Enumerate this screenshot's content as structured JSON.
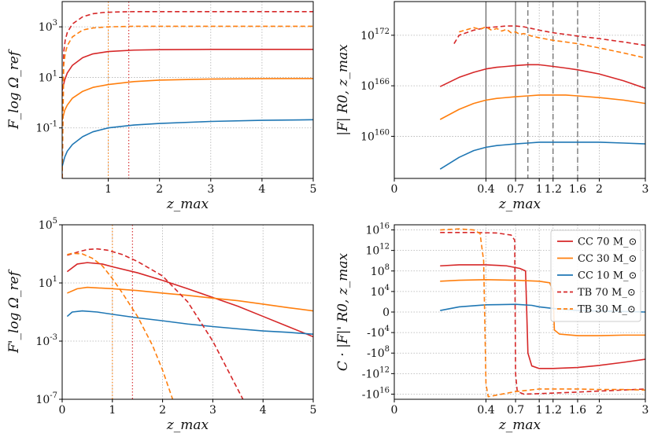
{
  "colors": {
    "red": "#d62728",
    "orange": "#ff7f0e",
    "blue": "#1f77b4",
    "grid": "#b0b0b0",
    "vline_gray": "#555555"
  },
  "chart_data": [
    {
      "id": "top-left",
      "type": "line",
      "xlabel": "z_max",
      "ylabel": "F_log Ω_ref",
      "xscale": "linear",
      "yscale": "log",
      "xlim": [
        0.1,
        5
      ],
      "ylim": [
        0.001,
        10000
      ],
      "xticks": [
        1,
        2,
        3,
        4,
        5
      ],
      "xtick_labels": [
        "1",
        "2",
        "3",
        "4",
        "5"
      ],
      "yticks": [
        0.1,
        10,
        1000
      ],
      "ytick_labels": [
        "10^-1",
        "10^1",
        "10^3"
      ],
      "vlines": [
        {
          "x": 1.0,
          "color": "orange",
          "style": "dotted"
        },
        {
          "x": 1.4,
          "color": "red",
          "style": "dotted"
        }
      ],
      "series": [
        {
          "name": "CC 70",
          "color": "red",
          "dash": "solid",
          "x": [
            0.1,
            0.15,
            0.2,
            0.3,
            0.5,
            0.7,
            1,
            1.5,
            2,
            3,
            4,
            5
          ],
          "y": [
            3,
            8,
            15,
            30,
            60,
            85,
            105,
            120,
            125,
            128,
            128,
            128
          ]
        },
        {
          "name": "CC 30",
          "color": "orange",
          "dash": "solid",
          "x": [
            0.1,
            0.15,
            0.2,
            0.3,
            0.5,
            0.7,
            1,
            1.5,
            2,
            3,
            4,
            5
          ],
          "y": [
            0.2,
            0.5,
            0.8,
            1.5,
            2.8,
            4,
            5.2,
            6.8,
            7.8,
            8.6,
            8.9,
            9
          ]
        },
        {
          "name": "CC 10",
          "color": "blue",
          "dash": "solid",
          "x": [
            0.1,
            0.15,
            0.2,
            0.3,
            0.5,
            0.7,
            1,
            1.5,
            2,
            3,
            4,
            5
          ],
          "y": [
            0.003,
            0.007,
            0.012,
            0.022,
            0.045,
            0.07,
            0.1,
            0.13,
            0.15,
            0.18,
            0.2,
            0.21
          ]
        },
        {
          "name": "TB 70",
          "color": "red",
          "dash": "dashed",
          "x": [
            0.1,
            0.13,
            0.16,
            0.2,
            0.3,
            0.5,
            0.7,
            0.9,
            1.2,
            1.5,
            2,
            3,
            4,
            5
          ],
          "y": [
            0.001,
            100,
            300,
            600,
            1300,
            2500,
            3300,
            3700,
            3900,
            4000,
            4000,
            4000,
            4000,
            4000
          ]
        },
        {
          "name": "TB 30",
          "color": "orange",
          "dash": "dashed",
          "x": [
            0.1,
            0.13,
            0.16,
            0.2,
            0.3,
            0.5,
            0.7,
            1,
            1.5,
            2,
            3,
            4,
            5
          ],
          "y": [
            0.001,
            30,
            90,
            180,
            400,
            750,
            900,
            1000,
            1050,
            1050,
            1050,
            1050,
            1050
          ]
        }
      ]
    },
    {
      "id": "top-right",
      "type": "line",
      "xlabel": "z_max",
      "ylabel": "|F| R0, z_max",
      "xscale": "sqrt",
      "yscale": "log",
      "xlim": [
        0,
        3
      ],
      "ylim": [
        1e+155,
        1e+176
      ],
      "xticks": [
        0,
        0.4,
        0.7,
        1,
        1.2,
        1.6,
        2,
        3
      ],
      "xtick_labels": [
        "0",
        "0.4",
        "0.7",
        "1",
        "1.2",
        "1.6",
        "2",
        "3"
      ],
      "yticks": [
        1e+160,
        1e+166,
        1e+172
      ],
      "ytick_labels": [
        "10^160",
        "10^166",
        "10^172"
      ],
      "vlines": [
        {
          "x": 0.4,
          "color": "vline_gray",
          "style": "solid"
        },
        {
          "x": 0.7,
          "color": "vline_gray",
          "style": "solid"
        },
        {
          "x": 0.85,
          "color": "vline_gray",
          "style": "dashed"
        },
        {
          "x": 1.2,
          "color": "vline_gray",
          "style": "dashed"
        },
        {
          "x": 1.6,
          "color": "vline_gray",
          "style": "dashed"
        }
      ],
      "series": [
        {
          "name": "CC 70",
          "color": "red",
          "dash": "solid",
          "x": [
            0.1,
            0.2,
            0.3,
            0.4,
            0.5,
            0.6,
            0.7,
            0.85,
            1,
            1.2,
            1.4,
            1.6,
            2,
            2.5,
            3
          ],
          "y_exp": [
            165.9,
            167,
            167.6,
            168,
            168.2,
            168.3,
            168.4,
            168.5,
            168.5,
            168.3,
            168.1,
            167.9,
            167.4,
            166.6,
            165.7
          ]
        },
        {
          "name": "CC 30",
          "color": "orange",
          "dash": "solid",
          "x": [
            0.1,
            0.2,
            0.3,
            0.4,
            0.5,
            0.7,
            0.85,
            1,
            1.2,
            1.4,
            1.6,
            2,
            2.5,
            3
          ],
          "y_exp": [
            162,
            163.2,
            163.9,
            164.3,
            164.5,
            164.7,
            164.8,
            164.9,
            164.9,
            164.9,
            164.8,
            164.6,
            164.3,
            163.9
          ]
        },
        {
          "name": "CC 10",
          "color": "blue",
          "dash": "solid",
          "x": [
            0.1,
            0.2,
            0.3,
            0.4,
            0.5,
            0.7,
            0.85,
            1,
            1.2,
            1.6,
            2,
            2.5,
            3
          ],
          "y_exp": [
            156.1,
            157.5,
            158.3,
            158.7,
            158.9,
            159.1,
            159.2,
            159.3,
            159.3,
            159.3,
            159.3,
            159.2,
            159.1
          ]
        },
        {
          "name": "TB 70",
          "color": "red",
          "dash": "dashed",
          "x": [
            0.17,
            0.2,
            0.3,
            0.4,
            0.5,
            0.6,
            0.7,
            0.8,
            0.9,
            1,
            1.2,
            1.4,
            1.6,
            2,
            2.5,
            3
          ],
          "y_exp": [
            171,
            172,
            172.6,
            172.9,
            173,
            173.1,
            173.1,
            173,
            172.8,
            172.6,
            172.3,
            172.1,
            171.9,
            171.6,
            171.2,
            170.8
          ]
        },
        {
          "name": "TB 30",
          "color": "orange",
          "dash": "dashed",
          "x": [
            0.2,
            0.3,
            0.35,
            0.4,
            0.45,
            0.5,
            0.55,
            0.6,
            0.65,
            0.7,
            0.75,
            0.8,
            0.9,
            1,
            1.2,
            1.4,
            1.6,
            2,
            2.5,
            3
          ],
          "y_exp": [
            172.4,
            172.9,
            172.7,
            173,
            172.6,
            172.8,
            172.5,
            172.7,
            172.3,
            172.4,
            172.1,
            172.2,
            171.9,
            171.7,
            171.4,
            171.2,
            171,
            170.5,
            169.9,
            169.3
          ]
        }
      ]
    },
    {
      "id": "bottom-left",
      "type": "line",
      "xlabel": "z_max",
      "ylabel": "F'_log Ω_ref",
      "xscale": "linear",
      "yscale": "log",
      "xlim": [
        0,
        5
      ],
      "ylim": [
        1e-07,
        100000.0
      ],
      "xticks": [
        0,
        1,
        2,
        3,
        4,
        5
      ],
      "xtick_labels": [
        "0",
        "1",
        "2",
        "3",
        "4",
        "5"
      ],
      "yticks": [
        1e-07,
        0.001,
        10,
        100000.0
      ],
      "ytick_labels": [
        "10^-7",
        "10^-3",
        "10^1",
        "10^5"
      ],
      "vlines": [
        {
          "x": 1.0,
          "color": "orange",
          "style": "dotted"
        },
        {
          "x": 1.4,
          "color": "red",
          "style": "dotted"
        }
      ],
      "series": [
        {
          "name": "CC 70",
          "color": "red",
          "dash": "solid",
          "x": [
            0.1,
            0.3,
            0.5,
            0.8,
            1,
            1.5,
            2,
            2.5,
            3,
            3.5,
            4,
            4.5,
            5
          ],
          "y": [
            60,
            200,
            250,
            200,
            130,
            50,
            15,
            4,
            1,
            0.25,
            0.05,
            0.01,
            0.002
          ]
        },
        {
          "name": "CC 30",
          "color": "orange",
          "dash": "solid",
          "x": [
            0.1,
            0.3,
            0.5,
            1,
            1.5,
            2,
            2.5,
            3,
            3.5,
            4,
            4.5,
            5
          ],
          "y": [
            2,
            4,
            5,
            4,
            3,
            2,
            1.4,
            0.9,
            0.6,
            0.35,
            0.2,
            0.12
          ]
        },
        {
          "name": "CC 10",
          "color": "blue",
          "dash": "solid",
          "x": [
            0.1,
            0.2,
            0.4,
            0.7,
            1,
            1.5,
            2,
            2.5,
            3,
            3.5,
            4,
            4.5,
            5
          ],
          "y": [
            0.05,
            0.1,
            0.12,
            0.1,
            0.07,
            0.04,
            0.025,
            0.015,
            0.01,
            0.007,
            0.005,
            0.004,
            0.003
          ]
        },
        {
          "name": "TB 70",
          "color": "red",
          "dash": "dashed",
          "x": [
            0.1,
            0.3,
            0.5,
            0.7,
            0.9,
            1.2,
            1.5,
            2,
            2.5,
            3,
            3.3,
            3.6
          ],
          "y": [
            800,
            1300,
            2000,
            2200,
            1800,
            900,
            300,
            30,
            0.5,
            0.001,
            1e-05,
            1e-07
          ]
        },
        {
          "name": "TB 30",
          "color": "orange",
          "dash": "dashed",
          "x": [
            0.1,
            0.2,
            0.4,
            0.6,
            0.8,
            1,
            1.2,
            1.5,
            1.8,
            2,
            2.2
          ],
          "y": [
            900,
            1100,
            1000,
            500,
            150,
            20,
            2,
            0.05,
            0.0005,
            1e-05,
            1e-07
          ]
        }
      ]
    },
    {
      "id": "bottom-right",
      "type": "line",
      "xlabel": "z_max",
      "ylabel": "C · |F|' R0, z_max",
      "xscale": "sqrt",
      "yscale": "symlog",
      "xlim": [
        0,
        3
      ],
      "ylim": [
        -1e+17,
        1e+17
      ],
      "xticks": [
        0,
        0.4,
        0.7,
        1,
        1.2,
        1.6,
        2,
        3
      ],
      "xtick_labels": [
        "0",
        "0.4",
        "0.7",
        "1",
        "1.2",
        "1.6",
        "2",
        "3"
      ],
      "yticks": [
        1e+16,
        1000000000000.0,
        100000000.0,
        10000.0,
        0,
        -10000.0,
        -100000000.0,
        -1000000000000.0,
        -1e+16
      ],
      "ytick_labels": [
        "10^16",
        "10^12",
        "10^8",
        "10^4",
        "0",
        "-10^4",
        "-10^8",
        "-10^12",
        "-10^16"
      ],
      "legend": {
        "position": "top-right",
        "unit": "M_⊙",
        "entries": [
          {
            "label": "CC 70",
            "color": "red",
            "dash": "solid"
          },
          {
            "label": "CC 30",
            "color": "orange",
            "dash": "solid"
          },
          {
            "label": "CC 10",
            "color": "blue",
            "dash": "solid"
          },
          {
            "label": "TB 70",
            "color": "red",
            "dash": "dashed"
          },
          {
            "label": "TB 30",
            "color": "orange",
            "dash": "dashed"
          }
        ]
      },
      "series": [
        {
          "name": "CC 70",
          "color": "red",
          "dash": "solid",
          "x": [
            0.1,
            0.2,
            0.4,
            0.6,
            0.75,
            0.82,
            0.85,
            0.9,
            1,
            1.2,
            1.6,
            2,
            2.5,
            3
          ],
          "ylog": [
            9,
            9.2,
            9.2,
            9,
            8.5,
            8,
            -8,
            -10.5,
            -11,
            -11,
            -10.8,
            -10.4,
            -9.8,
            -9.2
          ]
        },
        {
          "name": "CC 30",
          "color": "orange",
          "dash": "solid",
          "x": [
            0.1,
            0.2,
            0.4,
            0.7,
            1,
            1.15,
            1.2,
            1.22,
            1.3,
            1.6,
            2,
            2.5,
            3
          ],
          "ylog": [
            6,
            6.2,
            6.3,
            6.2,
            6,
            5.7,
            4,
            -3.5,
            -4.3,
            -4.6,
            -4.6,
            -4.5,
            -4.5
          ]
        },
        {
          "name": "CC 10",
          "color": "blue",
          "dash": "solid",
          "x": [
            0.1,
            0.2,
            0.4,
            0.7,
            0.9,
            1,
            1.2,
            1.6,
            2,
            2.5,
            3
          ],
          "ylog": [
            0.3,
            1,
            1.4,
            1.5,
            1.3,
            1,
            0.7,
            0.3,
            0.2,
            0.1,
            0
          ]
        },
        {
          "name": "TB 70",
          "color": "red",
          "dash": "dashed",
          "x": [
            0.1,
            0.3,
            0.5,
            0.65,
            0.69,
            0.7,
            0.72,
            0.8,
            1,
            1.6,
            2,
            2.5,
            3
          ],
          "ylog": [
            15.5,
            15.5,
            15.4,
            15,
            14,
            -12,
            -15.5,
            -16,
            -15.9,
            -15.6,
            -15.4,
            -15.2,
            -15
          ]
        },
        {
          "name": "TB 30",
          "color": "orange",
          "dash": "dashed",
          "x": [
            0.1,
            0.2,
            0.3,
            0.35,
            0.38,
            0.4,
            0.42,
            0.55,
            0.7,
            1,
            1.6,
            2,
            2.5,
            3
          ],
          "ylog": [
            16,
            16.2,
            16,
            15.3,
            10,
            -14,
            -16.5,
            -16,
            -15.5,
            -15,
            -15,
            -15.1,
            -15.1,
            -15.2
          ]
        }
      ]
    }
  ]
}
